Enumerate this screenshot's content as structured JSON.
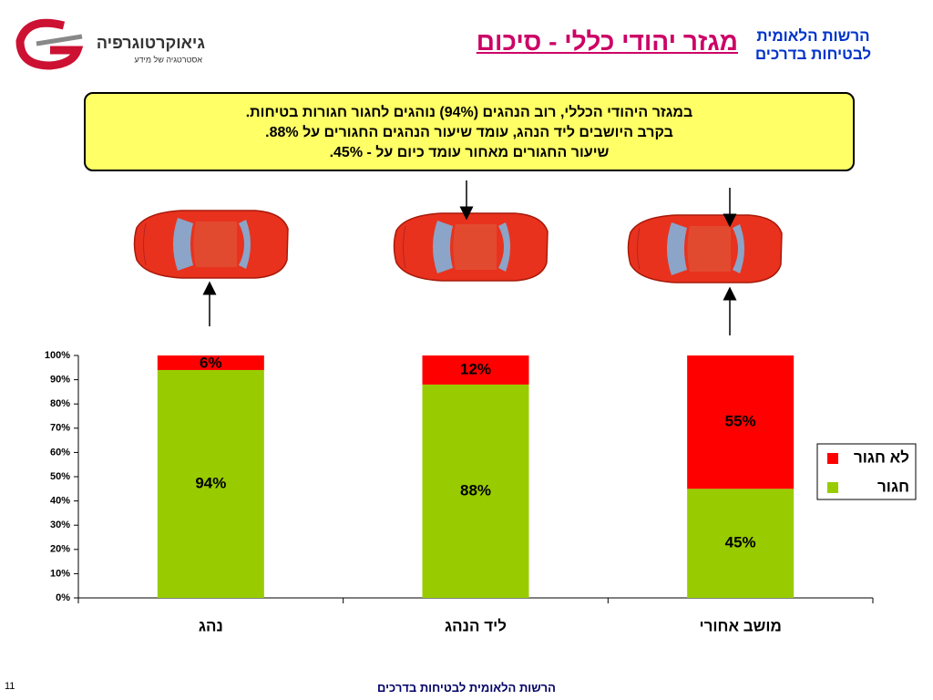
{
  "header": {
    "logo": "גיאוקרטוגרפיה",
    "logo_tagline": "אסטרטגיה של מידע",
    "title": "מגזר יהודי כללי - סיכום",
    "org_line1": "הרשות הלאומית",
    "org_line2": "לבטיחות בדרכים"
  },
  "callout": {
    "lines": [
      "במגזר היהודי הכללי, רוב הנהגים (94%) נוהגים לחגור חגורות בטיחות.",
      "בקרב היושבים ליד הנהג, עומד שיעור הנהגים החגורים על 88%.",
      "שיעור החגורים מאחור עומד כיום על - 45%."
    ]
  },
  "footer": {
    "text": "הרשות הלאומית לבטיחות בדרכים",
    "page": "11"
  },
  "chart_data": {
    "type": "stacked_bar",
    "categories": [
      "נהג",
      "ליד הנהג",
      "מושב אחורי"
    ],
    "series": [
      {
        "name": "חגור",
        "color": "#99cc00",
        "values": [
          94,
          88,
          45
        ],
        "value_labels": [
          "94%",
          "88%",
          "45%"
        ]
      },
      {
        "name": "לא חגור",
        "color": "#ff0000",
        "values": [
          6,
          12,
          55
        ],
        "value_labels": [
          "6%",
          "12%",
          "55%"
        ]
      }
    ],
    "ylim": [
      0,
      100
    ],
    "yticks": [
      {
        "value": 0,
        "label": "0%"
      },
      {
        "value": 10,
        "label": "10%"
      },
      {
        "value": 20,
        "label": "20%"
      },
      {
        "value": 30,
        "label": "30%"
      },
      {
        "value": 40,
        "label": "40%"
      },
      {
        "value": 50,
        "label": "50%"
      },
      {
        "value": 60,
        "label": "60%"
      },
      {
        "value": 70,
        "label": "70%"
      },
      {
        "value": 80,
        "label": "80%"
      },
      {
        "value": 90,
        "label": "90%"
      },
      {
        "value": 100,
        "label": "100%"
      }
    ],
    "legend": "right"
  }
}
